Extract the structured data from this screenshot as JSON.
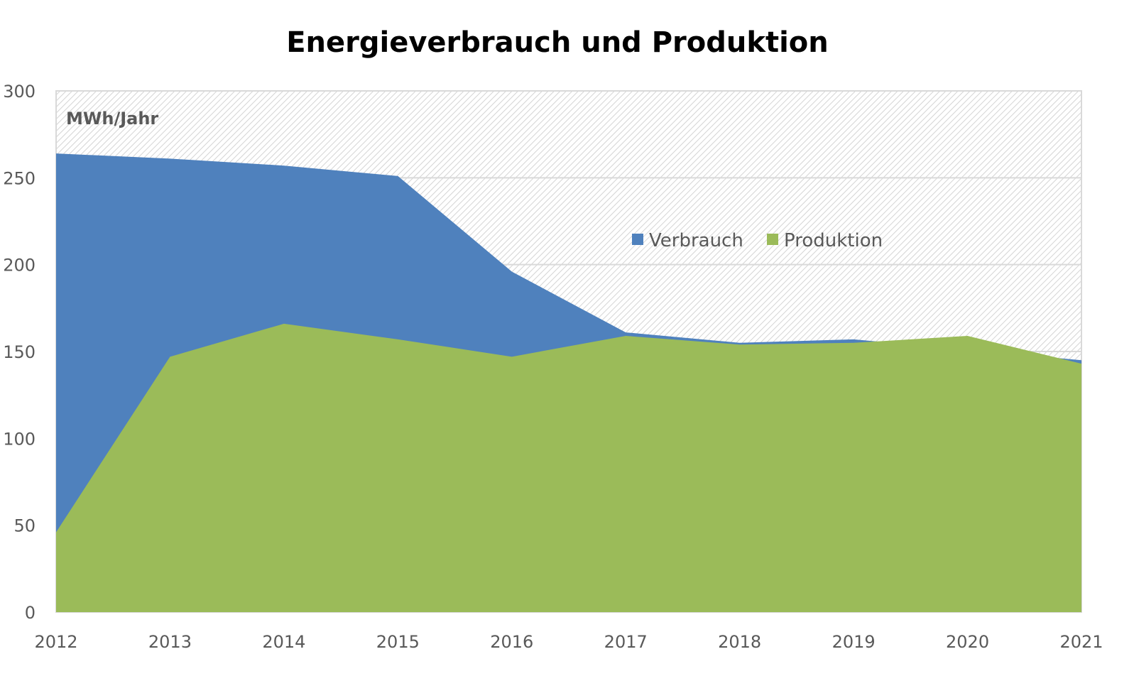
{
  "chart_data": {
    "type": "area",
    "title": "Energieverbrauch und Produktion",
    "ylabel": "MWh/Jahr",
    "xlabel": "",
    "ylim": [
      0,
      300
    ],
    "yticks": [
      0,
      50,
      100,
      150,
      200,
      250,
      300
    ],
    "categories": [
      "2012",
      "2013",
      "2014",
      "2015",
      "2016",
      "2017",
      "2018",
      "2019",
      "2020",
      "2021"
    ],
    "grid": true,
    "legend_position": "center-right",
    "series": [
      {
        "name": "Verbrauch",
        "color": "#4f81bd",
        "values": [
          264,
          261,
          257,
          251,
          196,
          161,
          155,
          157,
          151,
          145
        ]
      },
      {
        "name": "Produktion",
        "color": "#9bbb59",
        "values": [
          46,
          147,
          166,
          157,
          147,
          159,
          154,
          155,
          159,
          143
        ]
      }
    ]
  }
}
